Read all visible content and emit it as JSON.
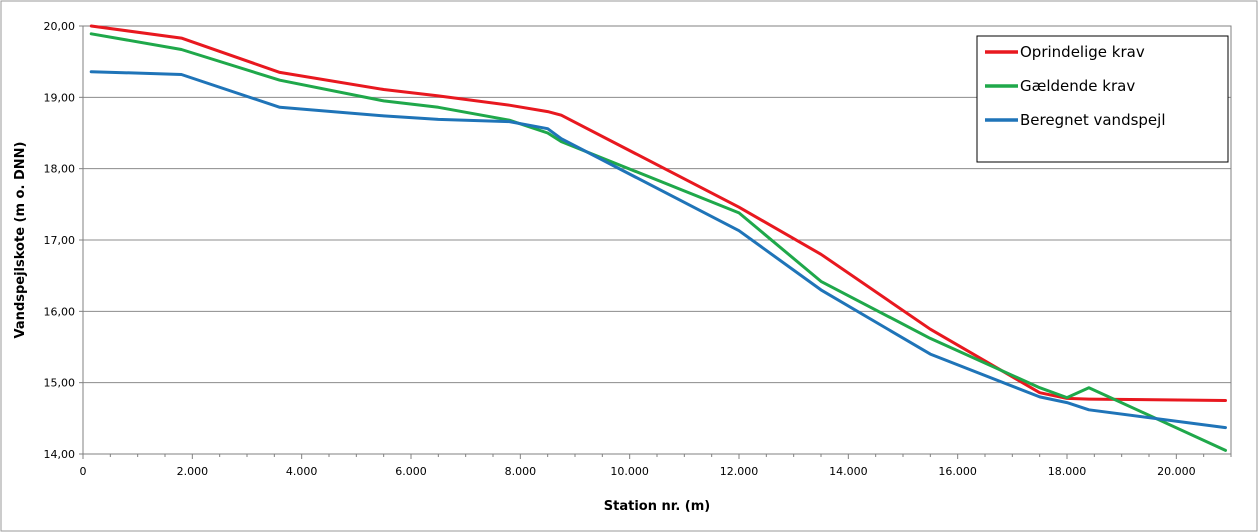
{
  "chart_data": {
    "type": "line",
    "title": "",
    "xlabel": "Station nr. (m)",
    "ylabel": "Vandspejlskote (m o. DNN)",
    "xlim": [
      0,
      21000
    ],
    "ylim": [
      14,
      20
    ],
    "grid": "horizontal",
    "legend_position": "top-right",
    "x_ticks": [
      {
        "value": 0,
        "label": "0"
      },
      {
        "value": 2000,
        "label": "2.000"
      },
      {
        "value": 4000,
        "label": "4.000"
      },
      {
        "value": 6000,
        "label": "6.000"
      },
      {
        "value": 8000,
        "label": "8.000"
      },
      {
        "value": 10000,
        "label": "10.000"
      },
      {
        "value": 12000,
        "label": "12.000"
      },
      {
        "value": 14000,
        "label": "14.000"
      },
      {
        "value": 16000,
        "label": "16.000"
      },
      {
        "value": 18000,
        "label": "18.000"
      },
      {
        "value": 20000,
        "label": "20.000"
      }
    ],
    "y_ticks": [
      {
        "value": 14,
        "label": "14,00"
      },
      {
        "value": 15,
        "label": "15,00"
      },
      {
        "value": 16,
        "label": "16,00"
      },
      {
        "value": 17,
        "label": "17,00"
      },
      {
        "value": 18,
        "label": "18,00"
      },
      {
        "value": 19,
        "label": "19,00"
      },
      {
        "value": 20,
        "label": "20,00"
      }
    ],
    "series": [
      {
        "name": "Oprindelige krav",
        "color": "#e8181f",
        "points": [
          [
            150,
            20.0
          ],
          [
            1800,
            19.83
          ],
          [
            3600,
            19.35
          ],
          [
            5500,
            19.11
          ],
          [
            6500,
            19.02
          ],
          [
            7800,
            18.89
          ],
          [
            8500,
            18.8
          ],
          [
            8750,
            18.75
          ],
          [
            12000,
            17.46
          ],
          [
            13500,
            16.8
          ],
          [
            15500,
            15.75
          ],
          [
            17500,
            14.86
          ],
          [
            18000,
            14.78
          ],
          [
            18400,
            14.77
          ],
          [
            20900,
            14.75
          ]
        ]
      },
      {
        "name": "Gældende krav",
        "color": "#1fa84a",
        "points": [
          [
            150,
            19.89
          ],
          [
            1800,
            19.67
          ],
          [
            3600,
            19.24
          ],
          [
            5500,
            18.95
          ],
          [
            6500,
            18.86
          ],
          [
            7800,
            18.68
          ],
          [
            8500,
            18.5
          ],
          [
            8750,
            18.38
          ],
          [
            12000,
            17.38
          ],
          [
            13500,
            16.42
          ],
          [
            15500,
            15.62
          ],
          [
            17500,
            14.93
          ],
          [
            18000,
            14.79
          ],
          [
            18400,
            14.93
          ],
          [
            20900,
            14.05
          ]
        ]
      },
      {
        "name": "Beregnet vandspejl",
        "color": "#1f74b8",
        "points": [
          [
            150,
            19.36
          ],
          [
            1800,
            19.32
          ],
          [
            3600,
            18.86
          ],
          [
            5500,
            18.74
          ],
          [
            6500,
            18.69
          ],
          [
            7800,
            18.66
          ],
          [
            8500,
            18.56
          ],
          [
            8750,
            18.42
          ],
          [
            12000,
            17.13
          ],
          [
            13500,
            16.3
          ],
          [
            15500,
            15.4
          ],
          [
            17500,
            14.8
          ],
          [
            18000,
            14.72
          ],
          [
            18400,
            14.62
          ],
          [
            20900,
            14.37
          ]
        ]
      }
    ]
  }
}
